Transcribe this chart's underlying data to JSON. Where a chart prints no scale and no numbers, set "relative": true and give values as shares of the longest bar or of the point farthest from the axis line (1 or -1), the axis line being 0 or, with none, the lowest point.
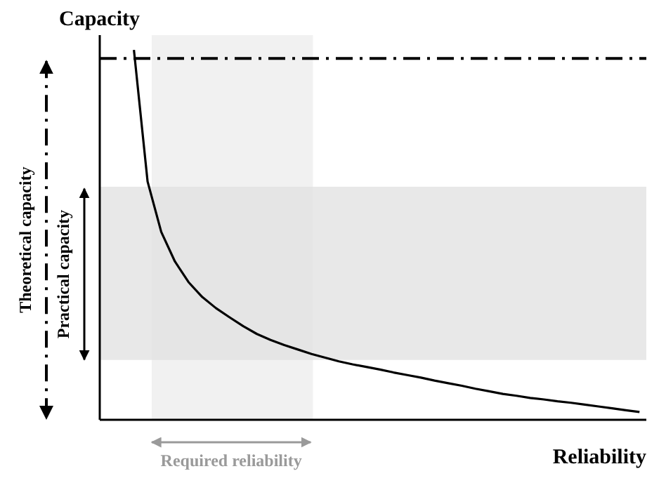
{
  "chart_data": {
    "type": "line",
    "xlabel": "Reliability",
    "ylabel": "Capacity",
    "relative": true,
    "categories": [
      null,
      null,
      null,
      null,
      null,
      null,
      null,
      null,
      null,
      null,
      null,
      null,
      null,
      null,
      null,
      null,
      null,
      null,
      null,
      null,
      null,
      null,
      null,
      null,
      null,
      null,
      null,
      null,
      null,
      null,
      null,
      null,
      null,
      null,
      null,
      null,
      null,
      null,
      null,
      null
    ],
    "marker": "none",
    "line_style": "solid",
    "grid": false,
    "legend": false,
    "series": [
      {
        "color": "#000000",
        "values": [
          null,
          null,
          1,
          0.644,
          0.508,
          0.428,
          0.372,
          0.332,
          0.302,
          0.277,
          0.253,
          0.232,
          0.216,
          0.202,
          0.19,
          0.178,
          0.168,
          0.158,
          0.15,
          0.143,
          0.136,
          0.128,
          0.121,
          0.114,
          0.106,
          0.099,
          0.092,
          0.084,
          0.077,
          0.07,
          0.065,
          0.059,
          0.055,
          0.05,
          0.046,
          0.041,
          0.036,
          0.031,
          0.026,
          0.021
        ]
      }
    ],
    "ref_lines": [
      {
        "axis": "y",
        "value": 0.977,
        "label": "Theoretical capacity",
        "color": "#000000",
        "line_style": "dashed"
      }
    ],
    "annotations": [
      "Required reliability"
    ],
    "bands": [
      {
        "axis": "y",
        "from": 0.162,
        "to": 0.63,
        "label": "Practical capacity",
        "color": "#e2e2e2"
      }
    ]
  }
}
